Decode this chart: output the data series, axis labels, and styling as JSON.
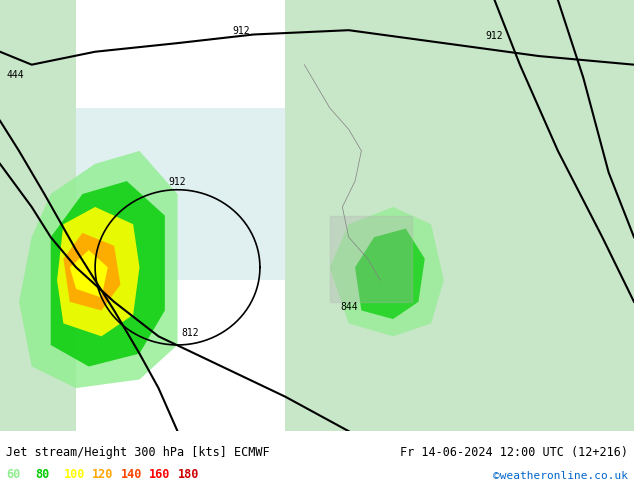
{
  "title_left": "Jet stream/Height 300 hPa [kts] ECMWF",
  "title_right": "Fr 14-06-2024 12:00 UTC (12+216)",
  "credit": "©weatheronline.co.uk",
  "legend_values": [
    "60",
    "80",
    "100",
    "120",
    "140",
    "160",
    "180"
  ],
  "legend_colors": [
    "#90ee90",
    "#00cc00",
    "#ffff00",
    "#ffa500",
    "#ff4500",
    "#ff0000",
    "#cc0000"
  ],
  "bg_color": "#e8f4e8",
  "map_bg": "#d0e8d0",
  "figsize": [
    6.34,
    4.9
  ],
  "dpi": 100,
  "bottom_bar_color": "#c8c8c8",
  "contour_color": "#000000",
  "land_color": "#c8e6c8",
  "sea_color": "#e0f0f0"
}
